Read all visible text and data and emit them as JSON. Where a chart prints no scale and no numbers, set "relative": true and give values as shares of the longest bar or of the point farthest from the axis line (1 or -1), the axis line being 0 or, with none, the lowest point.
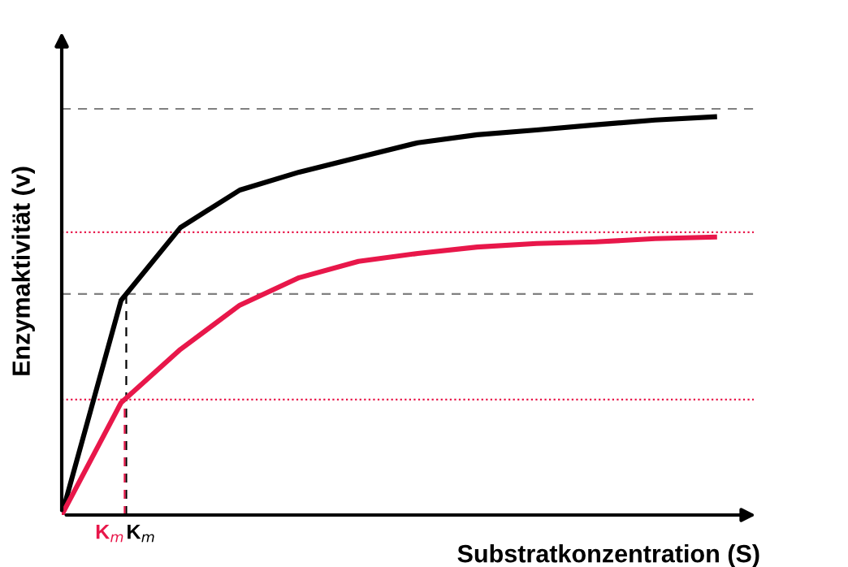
{
  "chart_data": {
    "type": "line",
    "relative": true,
    "xlabel": "Substratkonzentration (S)",
    "ylabel": "Enzymaktivität (v)",
    "legend": false,
    "marker": "none",
    "line_style": "solid",
    "categories": [
      null,
      null,
      null,
      null,
      null,
      null,
      null,
      null,
      null,
      null,
      null,
      null
    ],
    "series": [
      {
        "color": "#000000",
        "values": [
          0,
          0.539,
          0.722,
          0.816,
          0.861,
          0.898,
          0.935,
          0.955,
          0.967,
          0.98,
          0.992,
          1
        ]
      },
      {
        "color": "#e8174a",
        "values": [
          0,
          0.282,
          0.416,
          0.527,
          0.596,
          0.637,
          0.657,
          0.673,
          0.682,
          0.686,
          0.694,
          0.698
        ]
      }
    ],
    "ref_lines": [
      {
        "axis": "y",
        "value": 1.02,
        "color": "#808080",
        "line_style": "dashed"
      },
      {
        "axis": "y",
        "value": 0.555,
        "color": "#808080",
        "line_style": "dashed"
      },
      {
        "axis": "y",
        "value": 0.71,
        "color": "#e8174a",
        "line_style": "dotted"
      },
      {
        "axis": "y",
        "value": 0.29,
        "color": "#e8174a",
        "line_style": "dotted"
      }
    ],
    "annotations": [
      "K$_{m}$",
      "K$_{m}$"
    ]
  }
}
